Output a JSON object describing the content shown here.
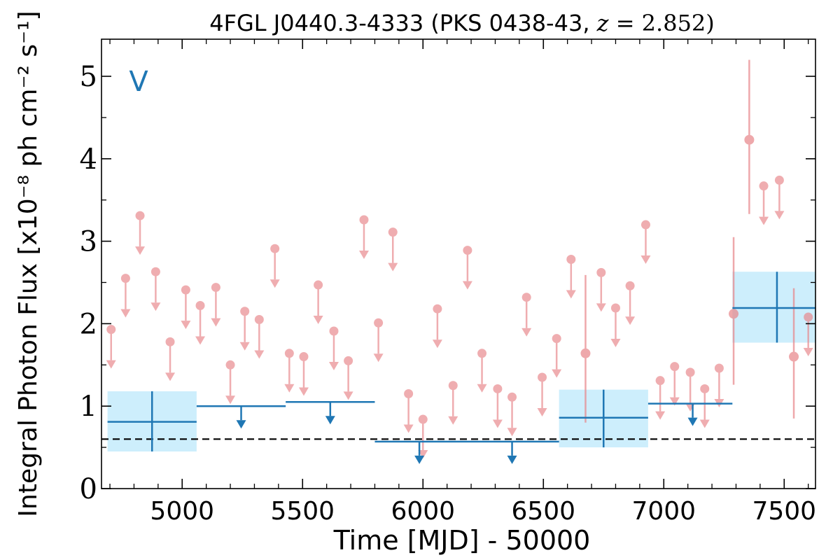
{
  "chart_data": {
    "type": "scatter",
    "title": "4FGL J0440.3-4333 (PKS 0438-43, z = 2.852)",
    "title_parts": {
      "prefix": "4FGL J0440.3-4333 (PKS 0438-43, ",
      "z_var": "z",
      "z_value": " = 2.852)"
    },
    "xlabel": "Time [MJD] - 50000",
    "ylabel": "Integral Photon Flux [x10⁻⁸ ph cm⁻² s⁻¹]",
    "panel_label": "V",
    "xlim": [
      4665,
      7630
    ],
    "ylim": [
      0,
      5.45
    ],
    "x_ticks": [
      5000,
      5500,
      6000,
      6500,
      7000,
      7500
    ],
    "y_ticks": [
      0,
      1,
      2,
      3,
      4,
      5
    ],
    "grid": false,
    "reference_line": {
      "y": 0.6,
      "style": "dashed"
    },
    "colors": {
      "short_bin": "#e8878b",
      "long_bin": "#1f77b4",
      "long_bin_band": "#cdeefc",
      "dashed_line": "#000000"
    },
    "short_bin_upper_limits": [
      {
        "x": 4705,
        "y": 1.93
      },
      {
        "x": 4765,
        "y": 2.55
      },
      {
        "x": 4825,
        "y": 3.31
      },
      {
        "x": 4890,
        "y": 2.63
      },
      {
        "x": 4950,
        "y": 1.78
      },
      {
        "x": 5015,
        "y": 2.41
      },
      {
        "x": 5075,
        "y": 2.22
      },
      {
        "x": 5140,
        "y": 2.44
      },
      {
        "x": 5200,
        "y": 1.5
      },
      {
        "x": 5260,
        "y": 2.15
      },
      {
        "x": 5320,
        "y": 2.05
      },
      {
        "x": 5385,
        "y": 2.91
      },
      {
        "x": 5445,
        "y": 1.64
      },
      {
        "x": 5505,
        "y": 1.6
      },
      {
        "x": 5565,
        "y": 2.47
      },
      {
        "x": 5630,
        "y": 1.91
      },
      {
        "x": 5690,
        "y": 1.55
      },
      {
        "x": 5755,
        "y": 3.26
      },
      {
        "x": 5815,
        "y": 2.01
      },
      {
        "x": 5875,
        "y": 3.11
      },
      {
        "x": 5940,
        "y": 1.15
      },
      {
        "x": 6000,
        "y": 0.84
      },
      {
        "x": 6060,
        "y": 2.18
      },
      {
        "x": 6125,
        "y": 1.25
      },
      {
        "x": 6185,
        "y": 2.89
      },
      {
        "x": 6245,
        "y": 1.64
      },
      {
        "x": 6310,
        "y": 1.21
      },
      {
        "x": 6370,
        "y": 1.11
      },
      {
        "x": 6430,
        "y": 2.32
      },
      {
        "x": 6495,
        "y": 1.35
      },
      {
        "x": 6555,
        "y": 1.82
      },
      {
        "x": 6615,
        "y": 2.78
      },
      {
        "x": 6740,
        "y": 2.62
      },
      {
        "x": 6800,
        "y": 2.19
      },
      {
        "x": 6860,
        "y": 2.46
      },
      {
        "x": 6925,
        "y": 3.2
      },
      {
        "x": 6985,
        "y": 1.31
      },
      {
        "x": 7045,
        "y": 1.48
      },
      {
        "x": 7110,
        "y": 1.41
      },
      {
        "x": 7170,
        "y": 1.21
      },
      {
        "x": 7230,
        "y": 1.46
      },
      {
        "x": 7415,
        "y": 3.67
      },
      {
        "x": 7480,
        "y": 3.74
      },
      {
        "x": 7600,
        "y": 2.08
      }
    ],
    "short_bin_detections": [
      {
        "x": 6675,
        "y": 1.64,
        "yerr_low": 0.84,
        "yerr_high": 0.95
      },
      {
        "x": 7290,
        "y": 2.12,
        "yerr_low": 0.86,
        "yerr_high": 0.93
      },
      {
        "x": 7355,
        "y": 4.23,
        "yerr_low": 0.9,
        "yerr_high": 0.97
      },
      {
        "x": 7540,
        "y": 1.6,
        "yerr_low": 0.75,
        "yerr_high": 0.83
      }
    ],
    "long_bin_detections": [
      {
        "x": 4875,
        "x_low": 4690,
        "x_high": 5060,
        "y": 0.81,
        "y_low": 0.45,
        "y_high": 1.18
      },
      {
        "x": 6750,
        "x_low": 6565,
        "x_high": 6935,
        "y": 0.86,
        "y_low": 0.5,
        "y_high": 1.2
      },
      {
        "x": 7470,
        "x_low": 7285,
        "x_high": 7655,
        "y": 2.19,
        "y_low": 1.77,
        "y_high": 2.63
      }
    ],
    "long_bin_upper_limits": [
      {
        "x": 5245,
        "x_low": 5060,
        "x_high": 5430,
        "y": 1.0
      },
      {
        "x": 5615,
        "x_low": 5430,
        "x_high": 5800,
        "y": 1.05
      },
      {
        "x": 6180,
        "x_low": 5800,
        "x_high": 6565,
        "y": 0.57
      },
      {
        "x": 7120,
        "x_low": 6935,
        "x_high": 7285,
        "y": 1.03
      }
    ],
    "long_bin_ul_arrows_x": [
      5245,
      5615,
      5985,
      6370,
      7120
    ]
  }
}
